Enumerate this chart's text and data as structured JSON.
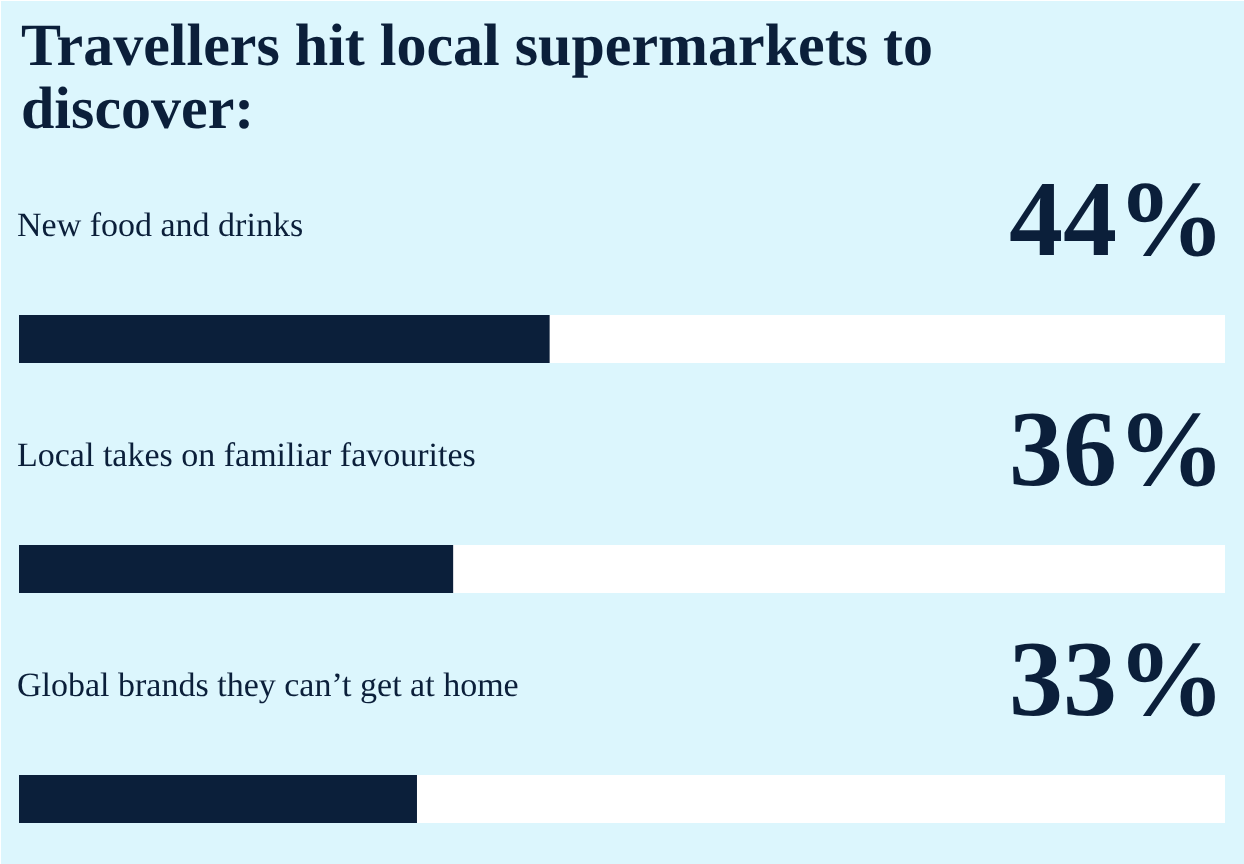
{
  "chart_data": {
    "type": "bar",
    "orientation": "horizontal",
    "title": "Travellers hit local supermarkets to discover:",
    "categories": [
      "New food and drinks",
      "Local takes on familiar favourites",
      "Global brands they can’t get at home"
    ],
    "values": [
      44,
      36,
      33
    ],
    "value_labels": [
      "44%",
      "36%",
      "33%"
    ],
    "color": "#0b1f3a",
    "xlim": [
      0,
      100
    ]
  }
}
